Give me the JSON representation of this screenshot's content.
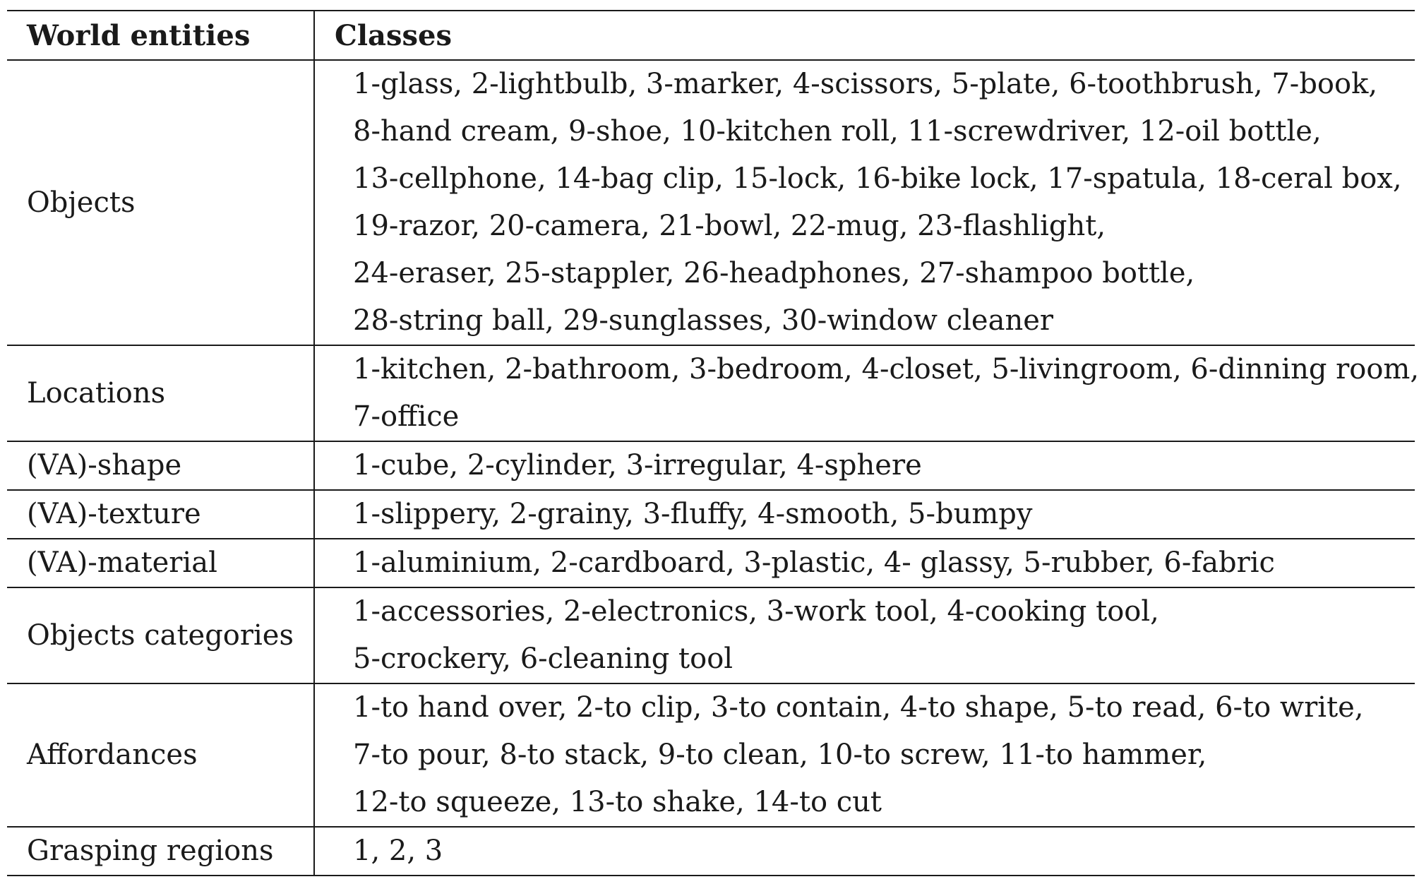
{
  "header": {
    "col1": "World entities",
    "col2": "Classes"
  },
  "rows": [
    {
      "entity": "Objects",
      "lines": [
        "1-glass, 2-lightbulb, 3-marker, 4-scissors, 5-plate, 6-toothbrush, 7-book,",
        "8-hand cream, 9-shoe, 10-kitchen roll, 11-screwdriver, 12-oil bottle,",
        "13-cellphone, 14-bag clip, 15-lock, 16-bike lock, 17-spatula, 18-ceral box,",
        "19-razor, 20-camera, 21-bowl, 22-mug, 23-flashlight,",
        "24-eraser, 25-stappler, 26-headphones, 27-shampoo bottle,",
        "28-string ball, 29-sunglasses, 30-window cleaner"
      ]
    },
    {
      "entity": "Locations",
      "lines": [
        "1-kitchen, 2-bathroom, 3-bedroom, 4-closet, 5-livingroom, 6-dinning room,",
        "7-office"
      ]
    },
    {
      "entity": "(VA)-shape",
      "lines": [
        "1-cube, 2-cylinder, 3-irregular, 4-sphere"
      ]
    },
    {
      "entity": "(VA)-texture",
      "lines": [
        "1-slippery, 2-grainy, 3-fluffy, 4-smooth, 5-bumpy"
      ]
    },
    {
      "entity": "(VA)-material",
      "lines": [
        "1-aluminium, 2-cardboard, 3-plastic, 4- glassy, 5-rubber, 6-fabric"
      ]
    },
    {
      "entity": "Objects categories",
      "lines": [
        "1-accessories, 2-electronics, 3-work tool, 4-cooking tool,",
        "5-crockery, 6-cleaning tool"
      ]
    },
    {
      "entity": "Affordances",
      "lines": [
        "1-to hand over, 2-to clip, 3-to contain, 4-to shape, 5-to read, 6-to write,",
        "7-to pour, 8-to stack, 9-to clean, 10-to screw, 11-to hammer,",
        "12-to squeeze, 13-to shake, 14-to cut"
      ]
    },
    {
      "entity": "Grasping regions",
      "lines": [
        "1, 2, 3"
      ]
    }
  ]
}
